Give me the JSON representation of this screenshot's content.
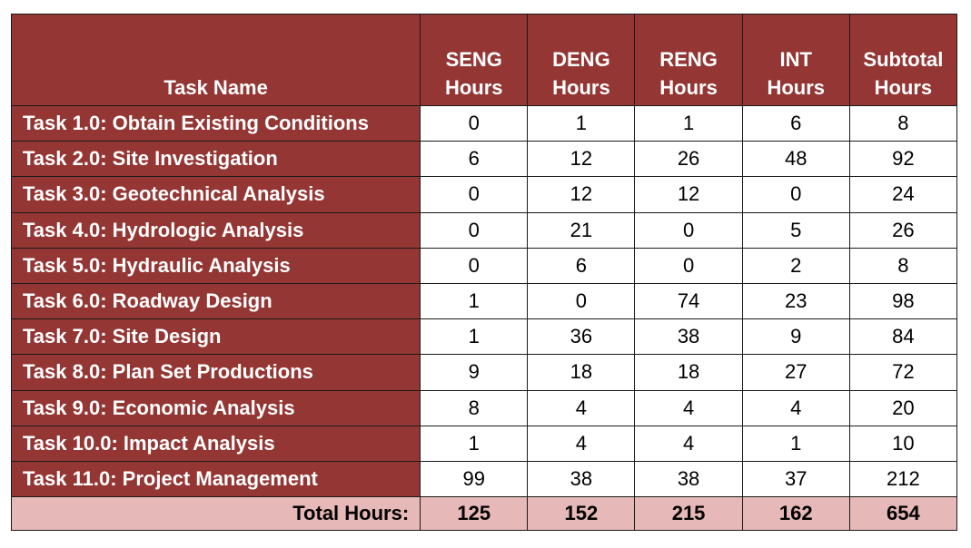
{
  "table": {
    "headers": {
      "task_name": "Task Name",
      "seng": [
        "SENG",
        "Hours"
      ],
      "deng": [
        "DENG",
        "Hours"
      ],
      "reng": [
        "RENG",
        "Hours"
      ],
      "int": [
        "INT",
        "Hours"
      ],
      "subtotal": [
        "Subtotal",
        "Hours"
      ]
    },
    "rows": [
      {
        "task": "Task 1.0: Obtain Existing Conditions",
        "seng": "0",
        "deng": "1",
        "reng": "1",
        "int": "6",
        "subtotal": "8"
      },
      {
        "task": "Task 2.0: Site Investigation",
        "seng": "6",
        "deng": "12",
        "reng": "26",
        "int": "48",
        "subtotal": "92"
      },
      {
        "task": "Task 3.0: Geotechnical Analysis",
        "seng": "0",
        "deng": "12",
        "reng": "12",
        "int": "0",
        "subtotal": "24"
      },
      {
        "task": "Task 4.0: Hydrologic Analysis",
        "seng": "0",
        "deng": "21",
        "reng": "0",
        "int": "5",
        "subtotal": "26"
      },
      {
        "task": "Task 5.0: Hydraulic Analysis",
        "seng": "0",
        "deng": "6",
        "reng": "0",
        "int": "2",
        "subtotal": "8"
      },
      {
        "task": "Task 6.0: Roadway Design",
        "seng": "1",
        "deng": "0",
        "reng": "74",
        "int": "23",
        "subtotal": "98"
      },
      {
        "task": "Task 7.0: Site Design",
        "seng": "1",
        "deng": "36",
        "reng": "38",
        "int": "9",
        "subtotal": "84"
      },
      {
        "task": "Task 8.0: Plan Set Productions",
        "seng": "9",
        "deng": "18",
        "reng": "18",
        "int": "27",
        "subtotal": "72"
      },
      {
        "task": "Task 9.0: Economic Analysis",
        "seng": "8",
        "deng": "4",
        "reng": "4",
        "int": "4",
        "subtotal": "20"
      },
      {
        "task": "Task 10.0: Impact Analysis",
        "seng": "1",
        "deng": "4",
        "reng": "4",
        "int": "1",
        "subtotal": "10"
      },
      {
        "task": "Task 11.0: Project Management",
        "seng": "99",
        "deng": "38",
        "reng": "38",
        "int": "37",
        "subtotal": "212"
      }
    ],
    "total": {
      "label": "Total Hours:",
      "seng": "125",
      "deng": "152",
      "reng": "215",
      "int": "162",
      "subtotal": "654"
    }
  },
  "colors": {
    "header_bg": "#943634",
    "total_bg": "#e6b8b7",
    "cell_bg": "#ffffff"
  }
}
